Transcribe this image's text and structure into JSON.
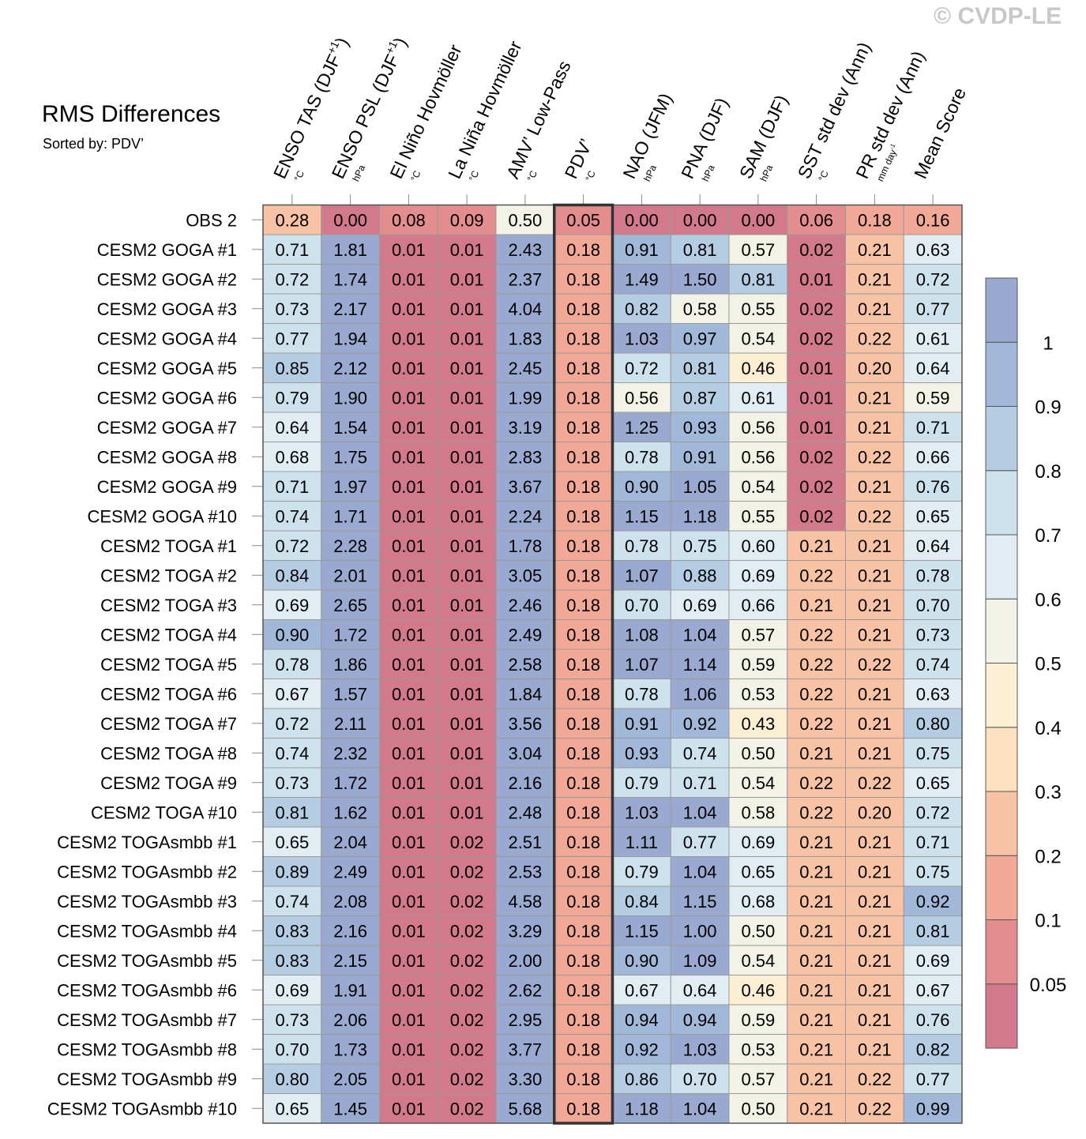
{
  "watermark": "© CVDP-LE",
  "title": "RMS Differences",
  "subtitle": "Sorted by: PDV’",
  "chart_data": {
    "type": "heatmap",
    "title": "RMS Differences",
    "sorted_by": "PDV’",
    "highlight_column": 5,
    "columns": [
      {
        "name": "ENSO TAS (DJF",
        "sup": "+1",
        "tail": ")",
        "units": "°C"
      },
      {
        "name": "ENSO PSL (DJF",
        "sup": "+1",
        "tail": ")",
        "units": "hPa"
      },
      {
        "name": "El Niño Hovmöller",
        "sup": "",
        "tail": "",
        "units": "°C"
      },
      {
        "name": "La Niña Hovmöller",
        "sup": "",
        "tail": "",
        "units": "°C"
      },
      {
        "name": "AMV’ Low-Pass",
        "sup": "",
        "tail": "",
        "units": "°C"
      },
      {
        "name": "PDV’",
        "sup": "",
        "tail": "",
        "units": "°C"
      },
      {
        "name": "NAO (JFM)",
        "sup": "",
        "tail": "",
        "units": "hPa"
      },
      {
        "name": "PNA (DJF)",
        "sup": "",
        "tail": "",
        "units": "hPa"
      },
      {
        "name": "SAM (DJF)",
        "sup": "",
        "tail": "",
        "units": "hPa"
      },
      {
        "name": "SST std dev (Ann)",
        "sup": "",
        "tail": "",
        "units": "°C"
      },
      {
        "name": "PR std dev (Ann)",
        "sup": "",
        "tail": "",
        "units": "mm day",
        "units_sup": "-1"
      },
      {
        "name": "Mean Score",
        "sup": "",
        "tail": "",
        "units": ""
      }
    ],
    "rows": [
      {
        "label": "OBS 2",
        "values": [
          "0.28",
          "0.00",
          "0.08",
          "0.09",
          "0.50",
          "0.05",
          "0.00",
          "0.00",
          "0.00",
          "0.06",
          "0.18",
          "0.16"
        ]
      },
      {
        "label": "CESM2 GOGA #1",
        "values": [
          "0.71",
          "1.81",
          "0.01",
          "0.01",
          "2.43",
          "0.18",
          "0.91",
          "0.81",
          "0.57",
          "0.02",
          "0.21",
          "0.63"
        ]
      },
      {
        "label": "CESM2 GOGA #2",
        "values": [
          "0.72",
          "1.74",
          "0.01",
          "0.01",
          "2.37",
          "0.18",
          "1.49",
          "1.50",
          "0.81",
          "0.01",
          "0.21",
          "0.72"
        ]
      },
      {
        "label": "CESM2 GOGA #3",
        "values": [
          "0.73",
          "2.17",
          "0.01",
          "0.01",
          "4.04",
          "0.18",
          "0.82",
          "0.58",
          "0.55",
          "0.02",
          "0.21",
          "0.77"
        ]
      },
      {
        "label": "CESM2 GOGA #4",
        "values": [
          "0.77",
          "1.94",
          "0.01",
          "0.01",
          "1.83",
          "0.18",
          "1.03",
          "0.97",
          "0.54",
          "0.02",
          "0.22",
          "0.61"
        ]
      },
      {
        "label": "CESM2 GOGA #5",
        "values": [
          "0.85",
          "2.12",
          "0.01",
          "0.01",
          "2.45",
          "0.18",
          "0.72",
          "0.81",
          "0.46",
          "0.01",
          "0.20",
          "0.64"
        ]
      },
      {
        "label": "CESM2 GOGA #6",
        "values": [
          "0.79",
          "1.90",
          "0.01",
          "0.01",
          "1.99",
          "0.18",
          "0.56",
          "0.87",
          "0.61",
          "0.01",
          "0.21",
          "0.59"
        ]
      },
      {
        "label": "CESM2 GOGA #7",
        "values": [
          "0.64",
          "1.54",
          "0.01",
          "0.01",
          "3.19",
          "0.18",
          "1.25",
          "0.93",
          "0.56",
          "0.01",
          "0.21",
          "0.71"
        ]
      },
      {
        "label": "CESM2 GOGA #8",
        "values": [
          "0.68",
          "1.75",
          "0.01",
          "0.01",
          "2.83",
          "0.18",
          "0.78",
          "0.91",
          "0.56",
          "0.02",
          "0.22",
          "0.66"
        ]
      },
      {
        "label": "CESM2 GOGA #9",
        "values": [
          "0.71",
          "1.97",
          "0.01",
          "0.01",
          "3.67",
          "0.18",
          "0.90",
          "1.05",
          "0.54",
          "0.02",
          "0.21",
          "0.76"
        ]
      },
      {
        "label": "CESM2 GOGA #10",
        "values": [
          "0.74",
          "1.71",
          "0.01",
          "0.01",
          "2.24",
          "0.18",
          "1.15",
          "1.18",
          "0.55",
          "0.02",
          "0.22",
          "0.65"
        ]
      },
      {
        "label": "CESM2 TOGA #1",
        "values": [
          "0.72",
          "2.28",
          "0.01",
          "0.01",
          "1.78",
          "0.18",
          "0.78",
          "0.75",
          "0.60",
          "0.21",
          "0.21",
          "0.64"
        ]
      },
      {
        "label": "CESM2 TOGA #2",
        "values": [
          "0.84",
          "2.01",
          "0.01",
          "0.01",
          "3.05",
          "0.18",
          "1.07",
          "0.88",
          "0.69",
          "0.22",
          "0.21",
          "0.78"
        ]
      },
      {
        "label": "CESM2 TOGA #3",
        "values": [
          "0.69",
          "2.65",
          "0.01",
          "0.01",
          "2.46",
          "0.18",
          "0.70",
          "0.69",
          "0.66",
          "0.21",
          "0.21",
          "0.70"
        ]
      },
      {
        "label": "CESM2 TOGA #4",
        "values": [
          "0.90",
          "1.72",
          "0.01",
          "0.01",
          "2.49",
          "0.18",
          "1.08",
          "1.04",
          "0.57",
          "0.22",
          "0.21",
          "0.73"
        ]
      },
      {
        "label": "CESM2 TOGA #5",
        "values": [
          "0.78",
          "1.86",
          "0.01",
          "0.01",
          "2.58",
          "0.18",
          "1.07",
          "1.14",
          "0.59",
          "0.22",
          "0.22",
          "0.74"
        ]
      },
      {
        "label": "CESM2 TOGA #6",
        "values": [
          "0.67",
          "1.57",
          "0.01",
          "0.01",
          "1.84",
          "0.18",
          "0.78",
          "1.06",
          "0.53",
          "0.22",
          "0.21",
          "0.63"
        ]
      },
      {
        "label": "CESM2 TOGA #7",
        "values": [
          "0.72",
          "2.11",
          "0.01",
          "0.01",
          "3.56",
          "0.18",
          "0.91",
          "0.92",
          "0.43",
          "0.22",
          "0.21",
          "0.80"
        ]
      },
      {
        "label": "CESM2 TOGA #8",
        "values": [
          "0.74",
          "2.32",
          "0.01",
          "0.01",
          "3.04",
          "0.18",
          "0.93",
          "0.74",
          "0.50",
          "0.21",
          "0.21",
          "0.75"
        ]
      },
      {
        "label": "CESM2 TOGA #9",
        "values": [
          "0.73",
          "1.72",
          "0.01",
          "0.01",
          "2.16",
          "0.18",
          "0.79",
          "0.71",
          "0.54",
          "0.22",
          "0.22",
          "0.65"
        ]
      },
      {
        "label": "CESM2 TOGA #10",
        "values": [
          "0.81",
          "1.62",
          "0.01",
          "0.01",
          "2.48",
          "0.18",
          "1.03",
          "1.04",
          "0.58",
          "0.22",
          "0.20",
          "0.72"
        ]
      },
      {
        "label": "CESM2 TOGAsmbb #1",
        "values": [
          "0.65",
          "2.04",
          "0.01",
          "0.02",
          "2.51",
          "0.18",
          "1.11",
          "0.77",
          "0.69",
          "0.21",
          "0.21",
          "0.71"
        ]
      },
      {
        "label": "CESM2 TOGAsmbb #2",
        "values": [
          "0.89",
          "2.49",
          "0.01",
          "0.02",
          "2.53",
          "0.18",
          "0.79",
          "1.04",
          "0.65",
          "0.21",
          "0.21",
          "0.75"
        ]
      },
      {
        "label": "CESM2 TOGAsmbb #3",
        "values": [
          "0.74",
          "2.08",
          "0.01",
          "0.02",
          "4.58",
          "0.18",
          "0.84",
          "1.15",
          "0.68",
          "0.21",
          "0.21",
          "0.92"
        ]
      },
      {
        "label": "CESM2 TOGAsmbb #4",
        "values": [
          "0.83",
          "2.16",
          "0.01",
          "0.02",
          "3.29",
          "0.18",
          "1.15",
          "1.00",
          "0.50",
          "0.21",
          "0.21",
          "0.81"
        ]
      },
      {
        "label": "CESM2 TOGAsmbb #5",
        "values": [
          "0.83",
          "2.15",
          "0.01",
          "0.02",
          "2.00",
          "0.18",
          "0.90",
          "1.09",
          "0.54",
          "0.21",
          "0.21",
          "0.69"
        ]
      },
      {
        "label": "CESM2 TOGAsmbb #6",
        "values": [
          "0.69",
          "1.91",
          "0.01",
          "0.02",
          "2.62",
          "0.18",
          "0.67",
          "0.64",
          "0.46",
          "0.21",
          "0.21",
          "0.67"
        ]
      },
      {
        "label": "CESM2 TOGAsmbb #7",
        "values": [
          "0.73",
          "2.06",
          "0.01",
          "0.02",
          "2.95",
          "0.18",
          "0.94",
          "0.94",
          "0.59",
          "0.21",
          "0.21",
          "0.76"
        ]
      },
      {
        "label": "CESM2 TOGAsmbb #8",
        "values": [
          "0.70",
          "1.73",
          "0.01",
          "0.02",
          "3.77",
          "0.18",
          "0.92",
          "1.03",
          "0.53",
          "0.21",
          "0.21",
          "0.82"
        ]
      },
      {
        "label": "CESM2 TOGAsmbb #9",
        "values": [
          "0.80",
          "2.05",
          "0.01",
          "0.02",
          "3.30",
          "0.18",
          "0.86",
          "0.70",
          "0.57",
          "0.21",
          "0.22",
          "0.77"
        ]
      },
      {
        "label": "CESM2 TOGAsmbb #10",
        "values": [
          "0.65",
          "1.45",
          "0.01",
          "0.02",
          "5.68",
          "0.18",
          "1.18",
          "1.04",
          "0.50",
          "0.21",
          "0.22",
          "0.99"
        ]
      }
    ],
    "colorbar": {
      "levels": [
        0.05,
        0.1,
        0.2,
        0.3,
        0.4,
        0.5,
        0.6,
        0.7,
        0.8,
        0.9,
        1
      ],
      "tick_labels": [
        "0.05",
        "0.1",
        "0.2",
        "0.3",
        "0.4",
        "0.5",
        "0.6",
        "0.7",
        "0.8",
        "0.9",
        "1"
      ],
      "colors": [
        "#d27a8c",
        "#e38d8e",
        "#f1a897",
        "#f7c3a4",
        "#fce0c0",
        "#fcefd4",
        "#f3f2e7",
        "#e1edf3",
        "#cde2ed",
        "#b5cde2",
        "#a2b8d8",
        "#99a9cf"
      ]
    }
  }
}
